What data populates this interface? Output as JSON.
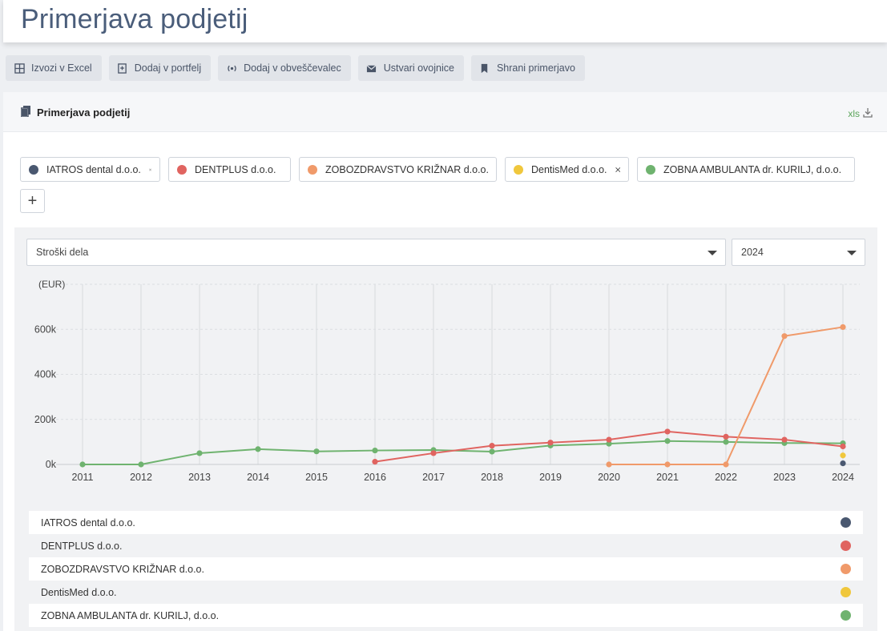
{
  "page": {
    "title": "Primerjava podjetij"
  },
  "toolbar": {
    "buttons": [
      {
        "label": "Izvozi v Excel",
        "icon": "grid-icon"
      },
      {
        "label": "Dodaj v portfelj",
        "icon": "portfolio-add-icon"
      },
      {
        "label": "Dodaj v obveščevalec",
        "icon": "broadcast-icon"
      },
      {
        "label": "Ustvari ovojnice",
        "icon": "envelope-icon"
      },
      {
        "label": "Shrani primerjavo",
        "icon": "bookmark-icon"
      }
    ]
  },
  "panel": {
    "title": "Primerjava podjetij",
    "xls_label": "xls"
  },
  "companies": [
    {
      "name": "IATROS dental d.o.o.",
      "color": "#4a5870"
    },
    {
      "name": "DENTPLUS d.o.o.",
      "color": "#e06460"
    },
    {
      "name": "ZOBOZDRAVSTVO KRIŽNAR d.o.o.",
      "color": "#f09a6a"
    },
    {
      "name": "DentisMed d.o.o.",
      "color": "#f0c73c"
    },
    {
      "name": "ZOBNA AMBULANTA dr. KURILJ, d.o.o.",
      "color": "#6fb36f"
    }
  ],
  "add_button": {
    "label": "+"
  },
  "filters": {
    "metric": "Stroški dela",
    "year": "2024"
  },
  "chart_data": {
    "type": "line",
    "ylabel": "(EUR)",
    "x": [
      2011,
      2012,
      2013,
      2014,
      2015,
      2016,
      2017,
      2018,
      2019,
      2020,
      2021,
      2022,
      2023,
      2024
    ],
    "ylim": [
      0,
      800000
    ],
    "yticks": [
      0,
      200000,
      400000,
      600000
    ],
    "ytick_labels": [
      "0k",
      "200k",
      "400k",
      "600k"
    ],
    "series": [
      {
        "name": "ZOBNA AMBULANTA dr. KURILJ, d.o.o.",
        "color": "#6fb36f",
        "points": [
          [
            2011,
            0
          ],
          [
            2012,
            0
          ],
          [
            2013,
            50000
          ],
          [
            2014,
            68000
          ],
          [
            2015,
            58000
          ],
          [
            2016,
            62000
          ],
          [
            2017,
            64000
          ],
          [
            2018,
            57000
          ],
          [
            2019,
            84000
          ],
          [
            2020,
            92000
          ],
          [
            2021,
            104000
          ],
          [
            2022,
            100000
          ],
          [
            2023,
            95000
          ],
          [
            2024,
            94000
          ]
        ]
      },
      {
        "name": "DENTPLUS d.o.o.",
        "color": "#e06460",
        "points": [
          [
            2016,
            12000
          ],
          [
            2017,
            50000
          ],
          [
            2018,
            83000
          ],
          [
            2019,
            97000
          ],
          [
            2020,
            110000
          ],
          [
            2021,
            146000
          ],
          [
            2022,
            123000
          ],
          [
            2023,
            110000
          ],
          [
            2024,
            80000
          ]
        ]
      },
      {
        "name": "ZOBOZDRAVSTVO KRIŽNAR d.o.o.",
        "color": "#f09a6a",
        "points": [
          [
            2020,
            0
          ],
          [
            2021,
            0
          ],
          [
            2022,
            0
          ],
          [
            2023,
            570000
          ],
          [
            2024,
            610000
          ]
        ]
      },
      {
        "name": "DentisMed d.o.o.",
        "color": "#f0c73c",
        "points": [
          [
            2024,
            40000
          ]
        ]
      },
      {
        "name": "IATROS dental d.o.o.",
        "color": "#4a5870",
        "points": [
          [
            2024,
            5000
          ]
        ]
      }
    ]
  }
}
